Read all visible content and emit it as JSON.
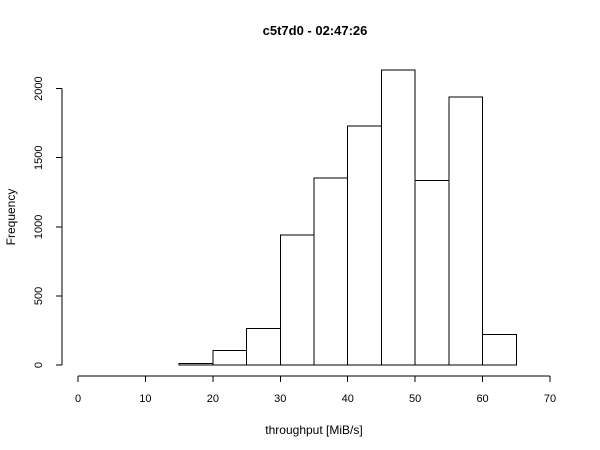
{
  "chart_data": {
    "type": "bar",
    "title": "c5t7d0 - 02:47:26",
    "xlabel": "throughput [MiB/s]",
    "ylabel": "Frequency",
    "bin_width": 5,
    "bins": [
      {
        "x0": 0,
        "x1": 5,
        "value": 0
      },
      {
        "x0": 5,
        "x1": 10,
        "value": 0
      },
      {
        "x0": 10,
        "x1": 15,
        "value": 0
      },
      {
        "x0": 15,
        "x1": 20,
        "value": 10
      },
      {
        "x0": 20,
        "x1": 25,
        "value": 105
      },
      {
        "x0": 25,
        "x1": 30,
        "value": 265
      },
      {
        "x0": 30,
        "x1": 35,
        "value": 940
      },
      {
        "x0": 35,
        "x1": 40,
        "value": 1355
      },
      {
        "x0": 40,
        "x1": 45,
        "value": 1730
      },
      {
        "x0": 45,
        "x1": 50,
        "value": 2135
      },
      {
        "x0": 50,
        "x1": 55,
        "value": 1335
      },
      {
        "x0": 55,
        "x1": 60,
        "value": 1940
      },
      {
        "x0": 60,
        "x1": 65,
        "value": 220
      },
      {
        "x0": 65,
        "x1": 70,
        "value": 0
      }
    ],
    "xlim": [
      0,
      70
    ],
    "ylim": [
      0,
      2135
    ],
    "x_ticks": [
      0,
      10,
      20,
      30,
      40,
      50,
      60,
      70
    ],
    "y_ticks": [
      0,
      500,
      1000,
      1500,
      2000
    ],
    "grid": false,
    "legend": "none"
  }
}
